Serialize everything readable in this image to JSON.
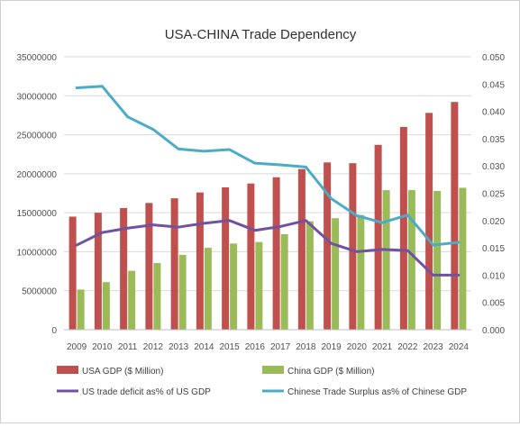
{
  "chart_data": {
    "type": "bar",
    "title": "USA-CHINA Trade Dependency",
    "categories": [
      "2009",
      "2010",
      "2011",
      "2012",
      "2013",
      "2014",
      "2015",
      "2016",
      "2017",
      "2018",
      "2019",
      "2020",
      "2021",
      "2022",
      "2023",
      "2024"
    ],
    "y_left": {
      "ylim": [
        0,
        35000000
      ],
      "ticks": [
        "0",
        "5000000",
        "10000000",
        "15000000",
        "20000000",
        "25000000",
        "30000000",
        "35000000"
      ]
    },
    "y_right": {
      "ylim": [
        0,
        0.05
      ],
      "ticks": [
        "0.000",
        "0.005",
        "0.010",
        "0.015",
        "0.020",
        "0.025",
        "0.030",
        "0.035",
        "0.040",
        "0.045",
        "0.050"
      ]
    },
    "series": [
      {
        "name": "USA GDP ($ Million)",
        "kind": "bar",
        "axis": "left",
        "color": "#c0504d",
        "values": [
          14500000,
          15000000,
          15600000,
          16250000,
          16850000,
          17600000,
          18250000,
          18750000,
          19550000,
          20600000,
          21450000,
          21350000,
          23700000,
          26000000,
          27800000,
          29200000
        ]
      },
      {
        "name": "China GDP ($ Million)",
        "kind": "bar",
        "axis": "left",
        "color": "#9bbb59",
        "values": [
          5150000,
          6100000,
          7550000,
          8550000,
          9600000,
          10500000,
          11050000,
          11250000,
          12250000,
          13900000,
          14300000,
          14700000,
          17900000,
          17900000,
          17800000,
          18200000
        ]
      },
      {
        "name": "US trade deficit as% of US GDP",
        "kind": "line",
        "axis": "right",
        "color": "#7152a0",
        "values": [
          0.0155,
          0.0178,
          0.0186,
          0.0192,
          0.0188,
          0.0195,
          0.02,
          0.0182,
          0.0189,
          0.02,
          0.0158,
          0.0143,
          0.0147,
          0.0145,
          0.01,
          0.01
        ]
      },
      {
        "name": "Chinese Trade Surplus as% of Chinese GDP",
        "kind": "line",
        "axis": "right",
        "color": "#4bacc6",
        "values": [
          0.0443,
          0.0446,
          0.039,
          0.0367,
          0.0331,
          0.0327,
          0.033,
          0.0305,
          0.0302,
          0.0298,
          0.024,
          0.0209,
          0.0196,
          0.021,
          0.0155,
          0.016
        ]
      }
    ],
    "grid": true,
    "legend": "bottom"
  }
}
